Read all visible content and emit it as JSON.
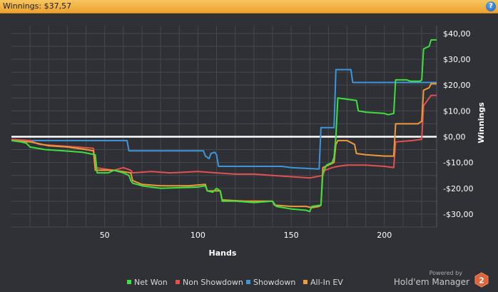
{
  "header": {
    "title": "Winnings: $37,57",
    "help_icon": "?"
  },
  "branding": {
    "powered_by": "Powered by",
    "name": "Hold'em Manager",
    "badge": "2"
  },
  "colors": {
    "background": "#2f3136",
    "grid": "#45484d",
    "zero_line": "#ffffff",
    "net_won": "#3ee03c",
    "non_showdown": "#e05252",
    "showdown": "#3d95da",
    "all_in_ev": "#ef9a3a"
  },
  "chart_data": {
    "type": "line",
    "title": "",
    "xlabel": "Hands",
    "ylabel": "Winnings",
    "xlim": [
      0,
      228
    ],
    "ylim": [
      -35,
      43
    ],
    "xticks": [
      50,
      100,
      150,
      200
    ],
    "xtick_labels": [
      "50",
      "100",
      "150",
      "200"
    ],
    "yticks": [
      40,
      30,
      20,
      10,
      0,
      -10,
      -20,
      -30
    ],
    "ytick_labels": [
      "$40,00",
      "$30,00",
      "$20,00",
      "$10,00",
      "$0,00",
      "-$10,00",
      "-$20,00",
      "-$30,00"
    ],
    "grid": true,
    "legend_position": "bottom",
    "series": [
      {
        "name": "Net Won",
        "color": "#3ee03c",
        "points": [
          [
            0,
            -1.5
          ],
          [
            5,
            -2
          ],
          [
            8,
            -2.5
          ],
          [
            10,
            -4
          ],
          [
            18,
            -5
          ],
          [
            28,
            -5.5
          ],
          [
            38,
            -6
          ],
          [
            45,
            -7
          ],
          [
            46,
            -14
          ],
          [
            52,
            -14
          ],
          [
            55,
            -13
          ],
          [
            60,
            -14
          ],
          [
            63,
            -15
          ],
          [
            64,
            -17
          ],
          [
            65,
            -18
          ],
          [
            70,
            -19
          ],
          [
            80,
            -20
          ],
          [
            100,
            -19.5
          ],
          [
            104,
            -19
          ],
          [
            105,
            -21
          ],
          [
            108,
            -21.5
          ],
          [
            110,
            -20
          ],
          [
            112,
            -21
          ],
          [
            113,
            -25
          ],
          [
            120,
            -25
          ],
          [
            130,
            -25.5
          ],
          [
            140,
            -25
          ],
          [
            142,
            -27
          ],
          [
            150,
            -28
          ],
          [
            158,
            -28.5
          ],
          [
            160,
            -29
          ],
          [
            161,
            -27
          ],
          [
            166,
            -26.5
          ],
          [
            167,
            -14
          ],
          [
            169,
            -11
          ],
          [
            172,
            -10
          ],
          [
            173,
            -8
          ],
          [
            174,
            0
          ],
          [
            175,
            15
          ],
          [
            180,
            14.5
          ],
          [
            185,
            14
          ],
          [
            186,
            10
          ],
          [
            190,
            9.5
          ],
          [
            200,
            9
          ],
          [
            202,
            8.5
          ],
          [
            205,
            9
          ],
          [
            206,
            22
          ],
          [
            212,
            22
          ],
          [
            214,
            21.5
          ],
          [
            219,
            21.5
          ],
          [
            220,
            22
          ],
          [
            221,
            34
          ],
          [
            224,
            35
          ],
          [
            225,
            37.5
          ],
          [
            228,
            37.5
          ]
        ]
      },
      {
        "name": "Non Showdown",
        "color": "#e05252",
        "points": [
          [
            0,
            -1
          ],
          [
            10,
            -1.5
          ],
          [
            15,
            -3
          ],
          [
            25,
            -3.5
          ],
          [
            35,
            -4
          ],
          [
            44,
            -4.5
          ],
          [
            45,
            -12
          ],
          [
            50,
            -12.5
          ],
          [
            55,
            -13
          ],
          [
            60,
            -12
          ],
          [
            64,
            -13
          ],
          [
            65,
            -14
          ],
          [
            75,
            -13.5
          ],
          [
            85,
            -14
          ],
          [
            100,
            -13.5
          ],
          [
            110,
            -14
          ],
          [
            120,
            -14.5
          ],
          [
            130,
            -14.5
          ],
          [
            140,
            -15
          ],
          [
            150,
            -15.5
          ],
          [
            160,
            -16
          ],
          [
            167,
            -15
          ],
          [
            168,
            -13
          ],
          [
            172,
            -12
          ],
          [
            175,
            -11.5
          ],
          [
            180,
            -11
          ],
          [
            190,
            -11
          ],
          [
            200,
            -11.5
          ],
          [
            205,
            -12
          ],
          [
            206,
            -2
          ],
          [
            215,
            -1.5
          ],
          [
            220,
            -1
          ],
          [
            221,
            12
          ],
          [
            224,
            15
          ],
          [
            225,
            16
          ],
          [
            228,
            16
          ]
        ]
      },
      {
        "name": "Showdown",
        "color": "#3d95da",
        "points": [
          [
            0,
            -1.5
          ],
          [
            60,
            -1.5
          ],
          [
            62,
            -1.5
          ],
          [
            63,
            -5.5
          ],
          [
            80,
            -5.5
          ],
          [
            103,
            -5.5
          ],
          [
            104,
            -7.5
          ],
          [
            106,
            -8.5
          ],
          [
            107,
            -6.5
          ],
          [
            109,
            -6
          ],
          [
            110,
            -7
          ],
          [
            111,
            -11.5
          ],
          [
            130,
            -11.5
          ],
          [
            145,
            -11.5
          ],
          [
            150,
            -12
          ],
          [
            165,
            -12.5
          ],
          [
            166,
            3.5
          ],
          [
            173,
            3.5
          ],
          [
            174,
            26
          ],
          [
            182,
            26
          ],
          [
            183,
            21
          ],
          [
            190,
            21
          ],
          [
            200,
            21
          ],
          [
            228,
            21
          ]
        ]
      },
      {
        "name": "All-In EV",
        "color": "#ef9a3a",
        "points": [
          [
            0,
            -1.5
          ],
          [
            10,
            -2
          ],
          [
            20,
            -3.5
          ],
          [
            30,
            -4
          ],
          [
            40,
            -5
          ],
          [
            44,
            -5.5
          ],
          [
            45,
            -13
          ],
          [
            55,
            -13
          ],
          [
            64,
            -14
          ],
          [
            65,
            -17
          ],
          [
            70,
            -18.5
          ],
          [
            80,
            -19
          ],
          [
            95,
            -19
          ],
          [
            104,
            -18.5
          ],
          [
            105,
            -21
          ],
          [
            110,
            -21
          ],
          [
            112,
            -21
          ],
          [
            113,
            -24.5
          ],
          [
            125,
            -25
          ],
          [
            140,
            -25
          ],
          [
            141,
            -26.5
          ],
          [
            150,
            -27
          ],
          [
            158,
            -27
          ],
          [
            161,
            -27.5
          ],
          [
            165,
            -27
          ],
          [
            166,
            -26.5
          ],
          [
            167,
            -12
          ],
          [
            170,
            -11
          ],
          [
            173,
            -10
          ],
          [
            174,
            -3
          ],
          [
            175,
            -1.5
          ],
          [
            180,
            -1.5
          ],
          [
            184,
            -3
          ],
          [
            185,
            -6.5
          ],
          [
            190,
            -7
          ],
          [
            200,
            -7.5
          ],
          [
            205,
            -7.5
          ],
          [
            206,
            5
          ],
          [
            210,
            5
          ],
          [
            218,
            5
          ],
          [
            219,
            5.5
          ],
          [
            220,
            6
          ],
          [
            221,
            18
          ],
          [
            224,
            19
          ],
          [
            225,
            20.5
          ],
          [
            228,
            20.5
          ]
        ]
      }
    ]
  }
}
